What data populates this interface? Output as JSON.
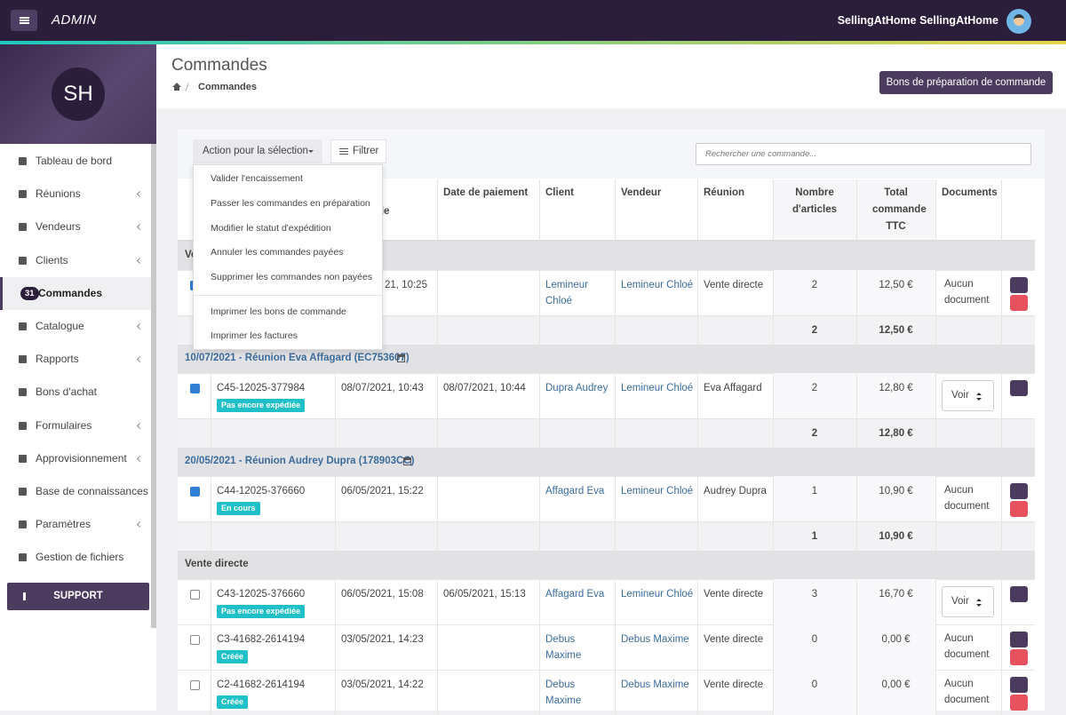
{
  "topbar": {
    "brand": "ADMIN",
    "user": "SellingAtHome SellingAtHome"
  },
  "sidebar": {
    "logo": "SH",
    "menu": [
      {
        "label": "Tableau de bord"
      },
      {
        "label": "Réunions",
        "sub": true
      },
      {
        "label": "Vendeurs",
        "sub": true
      },
      {
        "label": "Clients",
        "sub": true
      },
      {
        "label": "Commandes",
        "badge": "31",
        "active": true
      },
      {
        "label": "Catalogue",
        "sub": true
      },
      {
        "label": "Rapports",
        "sub": true
      },
      {
        "label": "Bons d'achat"
      },
      {
        "label": "Formulaires",
        "sub": true
      },
      {
        "label": "Approvisionnement",
        "sub": true
      },
      {
        "label": "Base de connaissances",
        "sub": true
      },
      {
        "label": "Paramètres",
        "sub": true
      },
      {
        "label": "Gestion de fichiers"
      }
    ],
    "support": "SUPPORT"
  },
  "header": {
    "title": "Commandes",
    "breadcrumb": "Commandes",
    "button": "Bons de préparation de commande"
  },
  "toolbar": {
    "action": "Action pour la sélection",
    "filter": "Filtrer",
    "search_placeholder": "Rechercher une commande..."
  },
  "dropdown": {
    "items": [
      "Valider l'encaissement",
      "Passer les commandes en préparation",
      "Modifier le statut d'expédition",
      "Annuler les commandes payées",
      "Supprimer les commandes non payées"
    ],
    "print_items": [
      "Imprimer les bons de commande",
      "Imprimer les factures"
    ]
  },
  "table": {
    "header_fragment": "de",
    "columns": [
      "Date de paiement",
      "Client",
      "Vendeur",
      "Réunion",
      "Nombre d'articles",
      "Total commande TTC",
      "Documents"
    ],
    "groups": [
      {
        "label": "Vente directe",
        "rows": [
          {
            "checked": true,
            "date": "21, 10:25",
            "client": "Lemineur Chloé",
            "seller": "Lemineur Chloé",
            "meeting": "Vente directe",
            "items": "2",
            "total": "12,50 €",
            "docs": "Aucun document",
            "delete": true
          }
        ],
        "sum_items": "2",
        "sum_total": "12,50 €"
      },
      {
        "label": "10/07/2021 - Réunion Eva Affagard (EC753607)",
        "rows": [
          {
            "checked": true,
            "order": "C45-12025-377984",
            "status": "Pas encore expédiée",
            "date": "08/07/2021, 10:43",
            "paid": "08/07/2021, 10:44",
            "client": "Dupra Audrey",
            "seller": "Lemineur Chloé",
            "meeting": "Eva Affagard",
            "items": "2",
            "total": "12,80 €",
            "docs_button": "Voir",
            "delete": false
          }
        ],
        "sum_items": "2",
        "sum_total": "12,80 €"
      },
      {
        "label": "20/05/2021 - Réunion Audrey Dupra (178903CC)",
        "rows": [
          {
            "checked": true,
            "order": "C44-12025-376660",
            "status": "En cours",
            "date": "06/05/2021, 15:22",
            "client": "Affagard Eva",
            "seller": "Lemineur Chloé",
            "meeting": "Audrey Dupra",
            "items": "1",
            "total": "10,90 €",
            "docs": "Aucun document",
            "delete": true
          }
        ],
        "sum_items": "1",
        "sum_total": "10,90 €"
      },
      {
        "label": "Vente directe",
        "rows": [
          {
            "checked": false,
            "order": "C43-12025-376660",
            "status": "Pas encore expédiée",
            "date": "06/05/2021, 15:08",
            "paid": "06/05/2021, 15:13",
            "client": "Affagard Eva",
            "seller": "Lemineur Chloé",
            "meeting": "Vente directe",
            "items": "3",
            "total": "16,70 €",
            "docs_button": "Voir",
            "delete": false
          },
          {
            "checked": false,
            "order": "C3-41682-2614194",
            "status": "Créée",
            "date": "03/05/2021, 14:23",
            "client": "Debus Maxime",
            "seller": "Debus Maxime",
            "meeting": "Vente directe",
            "items": "0",
            "total": "0,00 €",
            "docs": "Aucun document",
            "delete": true
          },
          {
            "checked": false,
            "order": "C2-41682-2614194",
            "status": "Créée",
            "date": "03/05/2021, 14:22",
            "client": "Debus Maxime",
            "seller": "Debus Maxime",
            "meeting": "Vente directe",
            "items": "0",
            "total": "0,00 €",
            "docs": "Aucun document",
            "delete": true
          }
        ]
      }
    ]
  }
}
